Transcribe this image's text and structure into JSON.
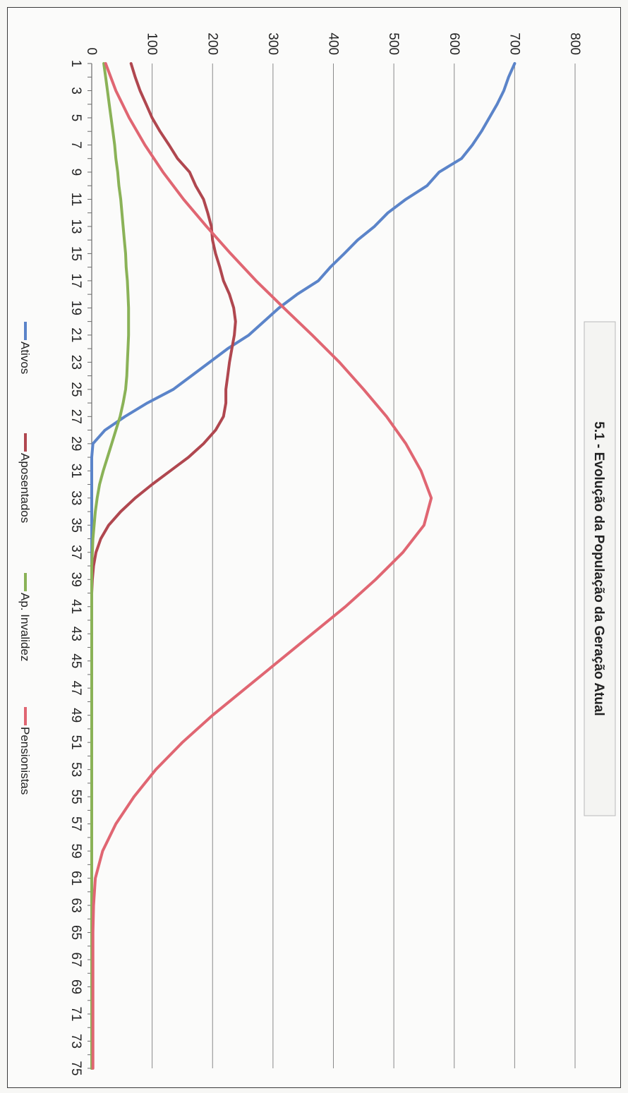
{
  "chart_data": {
    "type": "line",
    "title": "5.1 - Evolução da População da Geração Atual",
    "xlabel": "",
    "ylabel": "",
    "x_labels": [
      "1",
      "3",
      "5",
      "7",
      "9",
      "11",
      "13",
      "15",
      "17",
      "19",
      "21",
      "23",
      "25",
      "27",
      "29",
      "31",
      "33",
      "35",
      "37",
      "39",
      "41",
      "43",
      "45",
      "47",
      "49",
      "51",
      "53",
      "55",
      "57",
      "59",
      "61",
      "63",
      "65",
      "67",
      "69",
      "71",
      "73",
      "75"
    ],
    "xlim": [
      1,
      75
    ],
    "ylim": [
      0,
      800
    ],
    "y_ticks": [
      "0",
      "100",
      "200",
      "300",
      "400",
      "500",
      "600",
      "700",
      "800"
    ],
    "grid": true,
    "legend_position": "bottom",
    "series": [
      {
        "name": "Ativos",
        "color": "#5b84c9",
        "points": [
          [
            1,
            700
          ],
          [
            2,
            690
          ],
          [
            3,
            682
          ],
          [
            4,
            671
          ],
          [
            5,
            658
          ],
          [
            6,
            645
          ],
          [
            7,
            630
          ],
          [
            8,
            612
          ],
          [
            9,
            575
          ],
          [
            10,
            555
          ],
          [
            11,
            520
          ],
          [
            12,
            490
          ],
          [
            13,
            468
          ],
          [
            14,
            440
          ],
          [
            15,
            418
          ],
          [
            16,
            395
          ],
          [
            17,
            375
          ],
          [
            18,
            340
          ],
          [
            19,
            310
          ],
          [
            20,
            285
          ],
          [
            21,
            260
          ],
          [
            22,
            225
          ],
          [
            23,
            195
          ],
          [
            24,
            165
          ],
          [
            25,
            135
          ],
          [
            26,
            92
          ],
          [
            27,
            55
          ],
          [
            28,
            22
          ],
          [
            29,
            2
          ],
          [
            30,
            0
          ],
          [
            75,
            0
          ]
        ]
      },
      {
        "name": "Aposentados",
        "color": "#b0474f",
        "points": [
          [
            1,
            65
          ],
          [
            2,
            72
          ],
          [
            3,
            80
          ],
          [
            4,
            90
          ],
          [
            5,
            100
          ],
          [
            6,
            113
          ],
          [
            7,
            128
          ],
          [
            8,
            142
          ],
          [
            9,
            162
          ],
          [
            10,
            172
          ],
          [
            11,
            185
          ],
          [
            12,
            192
          ],
          [
            13,
            198
          ],
          [
            14,
            200
          ],
          [
            15,
            205
          ],
          [
            16,
            212
          ],
          [
            17,
            218
          ],
          [
            18,
            228
          ],
          [
            19,
            235
          ],
          [
            20,
            238
          ],
          [
            21,
            236
          ],
          [
            22,
            232
          ],
          [
            23,
            228
          ],
          [
            24,
            225
          ],
          [
            25,
            222
          ],
          [
            26,
            222
          ],
          [
            27,
            218
          ],
          [
            28,
            205
          ],
          [
            29,
            185
          ],
          [
            30,
            160
          ],
          [
            31,
            130
          ],
          [
            32,
            100
          ],
          [
            33,
            72
          ],
          [
            34,
            48
          ],
          [
            35,
            28
          ],
          [
            36,
            15
          ],
          [
            37,
            7
          ],
          [
            38,
            3
          ],
          [
            39,
            1
          ],
          [
            40,
            0
          ],
          [
            75,
            0
          ]
        ]
      },
      {
        "name": "Ap. Invalidez",
        "color": "#8ab257",
        "points": [
          [
            1,
            20
          ],
          [
            2,
            23
          ],
          [
            3,
            26
          ],
          [
            4,
            29
          ],
          [
            5,
            32
          ],
          [
            6,
            35
          ],
          [
            7,
            38
          ],
          [
            8,
            40
          ],
          [
            9,
            43
          ],
          [
            10,
            45
          ],
          [
            11,
            48
          ],
          [
            12,
            50
          ],
          [
            13,
            52
          ],
          [
            14,
            54
          ],
          [
            15,
            56
          ],
          [
            16,
            57
          ],
          [
            17,
            59
          ],
          [
            18,
            60
          ],
          [
            19,
            61
          ],
          [
            20,
            61
          ],
          [
            21,
            61
          ],
          [
            22,
            60
          ],
          [
            23,
            59
          ],
          [
            24,
            58
          ],
          [
            25,
            56
          ],
          [
            26,
            52
          ],
          [
            27,
            47
          ],
          [
            28,
            40
          ],
          [
            29,
            33
          ],
          [
            30,
            26
          ],
          [
            31,
            19
          ],
          [
            32,
            13
          ],
          [
            33,
            9
          ],
          [
            34,
            6
          ],
          [
            35,
            4
          ],
          [
            36,
            2
          ],
          [
            37,
            1
          ],
          [
            38,
            0
          ],
          [
            75,
            0
          ]
        ]
      },
      {
        "name": "Pensionistas",
        "color": "#e06672",
        "points": [
          [
            1,
            23
          ],
          [
            3,
            40
          ],
          [
            5,
            62
          ],
          [
            7,
            88
          ],
          [
            9,
            118
          ],
          [
            11,
            152
          ],
          [
            13,
            190
          ],
          [
            15,
            230
          ],
          [
            17,
            272
          ],
          [
            19,
            318
          ],
          [
            21,
            365
          ],
          [
            23,
            410
          ],
          [
            25,
            450
          ],
          [
            27,
            488
          ],
          [
            29,
            520
          ],
          [
            31,
            545
          ],
          [
            33,
            562
          ],
          [
            35,
            550
          ],
          [
            37,
            515
          ],
          [
            39,
            470
          ],
          [
            41,
            420
          ],
          [
            43,
            365
          ],
          [
            45,
            310
          ],
          [
            47,
            255
          ],
          [
            49,
            200
          ],
          [
            51,
            150
          ],
          [
            53,
            106
          ],
          [
            55,
            70
          ],
          [
            57,
            40
          ],
          [
            59,
            18
          ],
          [
            61,
            6
          ],
          [
            63,
            3
          ],
          [
            65,
            2
          ],
          [
            75,
            2
          ]
        ]
      }
    ]
  }
}
